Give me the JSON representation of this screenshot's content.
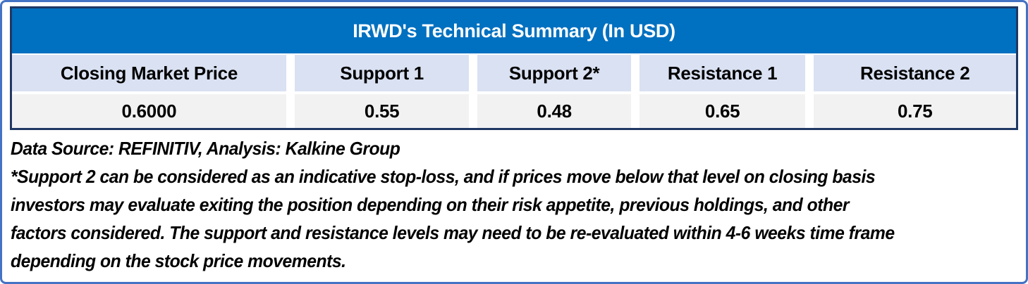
{
  "chart_data": {
    "type": "table",
    "title": "IRWD's Technical Summary (In USD)",
    "columns": [
      "Closing Market Price",
      "Support 1",
      "Support 2*",
      "Resistance 1",
      "Resistance 2"
    ],
    "values": [
      "0.6000",
      "0.55",
      "0.48",
      "0.65",
      "0.75"
    ]
  },
  "footnotes": {
    "data_source": "Data Source: REFINITIV, Analysis: Kalkine Group",
    "disclaimer_lines": [
      "*Support 2 can be considered as an indicative stop-loss, and if prices move below that level on closing basis",
      "investors may evaluate exiting the position depending on their risk appetite, previous holdings, and other",
      "factors considered. The support and resistance levels may need to be re-evaluated within 4-6 weeks time frame",
      "depending on the stock price movements."
    ]
  },
  "colors": {
    "title_bg": "#0070C0",
    "title_text": "#FFFFFF",
    "header_row_bg": "#D9E1F2",
    "value_row_bg": "#F2F2F2",
    "table_border": "#1F3864",
    "outer_border": "#4472C4",
    "text": "#000000"
  }
}
